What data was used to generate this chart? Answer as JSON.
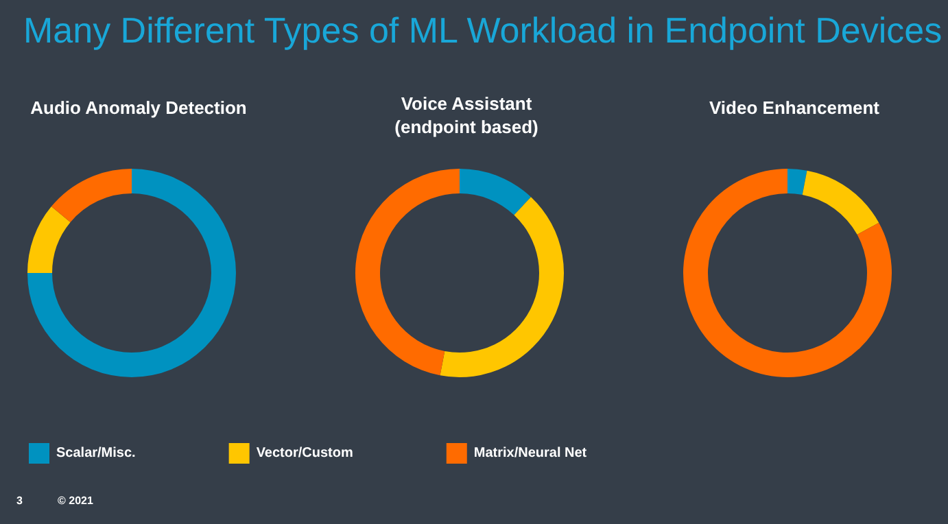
{
  "chart_data": {
    "type": "donut",
    "title": "Many Different Types of ML Workload in Endpoint Devices",
    "categories": [
      "Scalar/Misc.",
      "Vector/Custom",
      "Matrix/Neural Net"
    ],
    "colors": [
      "#0092c0",
      "#ffc600",
      "#ff6b00"
    ],
    "series": [
      {
        "name": "Audio Anomaly Detection",
        "values": [
          75,
          11,
          14
        ]
      },
      {
        "name": "Voice Assistant\n(endpoint based)",
        "values": [
          12,
          41,
          47
        ]
      },
      {
        "name": "Video Enhancement",
        "values": [
          3,
          14,
          83
        ]
      }
    ],
    "legend": "bottom left",
    "annotations": [
      "3",
      "© 2021"
    ]
  }
}
